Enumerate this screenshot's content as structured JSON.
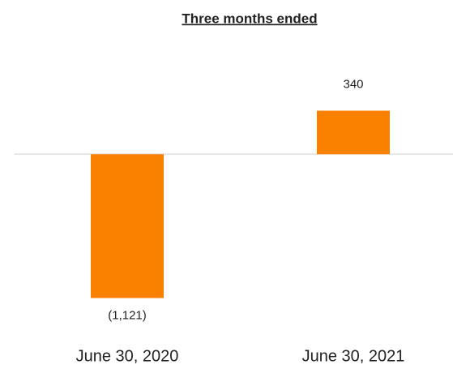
{
  "chart_data": {
    "type": "bar",
    "title": "Three months ended",
    "categories": [
      "June 30, 2020",
      "June 30, 2021"
    ],
    "values": [
      -1121,
      340
    ],
    "value_labels": [
      "(1,121)",
      "340"
    ],
    "color": "#fa8000",
    "ylim": [
      -1200,
      400
    ]
  }
}
